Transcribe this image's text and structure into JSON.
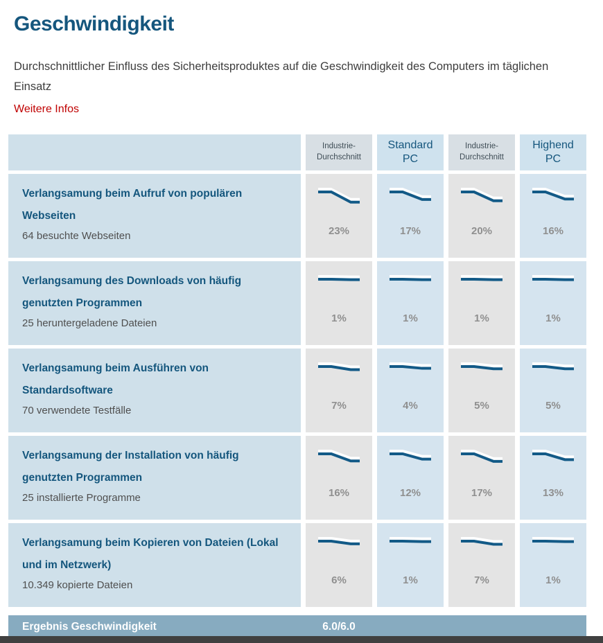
{
  "page": {
    "title": "Geschwindigkeit",
    "description": "Durchschnittlicher Einfluss des Sicherheitsproduktes auf die Geschwindigkeit des Computers im täglichen Einsatz",
    "more_info_link": "Weitere Infos"
  },
  "table": {
    "columns": [
      {
        "label": "Industrie-Durchschnitt",
        "type": "industry"
      },
      {
        "label": "Standard PC",
        "type": "pc"
      },
      {
        "label": "Industrie-Durchschnitt",
        "type": "industry"
      },
      {
        "label": "Highend PC",
        "type": "pc"
      }
    ],
    "rows": [
      {
        "title": "Verlangsamung beim Aufruf von populären Webseiten",
        "subtitle": "64 besuchte Webseiten",
        "values": [
          "23%",
          "17%",
          "20%",
          "16%"
        ]
      },
      {
        "title": "Verlangsamung des Downloads von häufig genutzten Programmen",
        "subtitle": "25 heruntergeladene Dateien",
        "values": [
          "1%",
          "1%",
          "1%",
          "1%"
        ]
      },
      {
        "title": "Verlangsamung beim Ausführen von Standardsoftware",
        "subtitle": "70 verwendete Testfälle",
        "values": [
          "7%",
          "4%",
          "5%",
          "5%"
        ]
      },
      {
        "title": "Verlangsamung der Installation von häufig genutzten Programmen",
        "subtitle": "25 installierte Programme",
        "values": [
          "16%",
          "12%",
          "17%",
          "13%"
        ]
      },
      {
        "title": "Verlangsamung beim Kopieren von Dateien (Lokal und im Netzwerk)",
        "subtitle": "10.349 kopierte Dateien",
        "values": [
          "6%",
          "1%",
          "7%",
          "1%"
        ]
      }
    ],
    "footer": {
      "label": "Ergebnis Geschwindigkeit",
      "score": "6.0/6.0"
    }
  },
  "colors": {
    "heading_blue": "#15567d",
    "link_red": "#c00000",
    "label_cell_bg": "#cfe0ea",
    "industry_cell_bg": "#e4e4e4",
    "pc_cell_bg": "#d5e4ef",
    "footer_bar_bg": "#87abc0",
    "sparkline_blue": "#135a87",
    "percent_gray": "#8f8f8f"
  }
}
